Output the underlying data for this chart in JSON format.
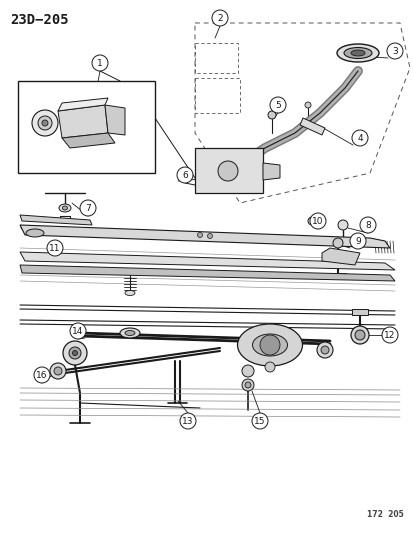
{
  "title": "23D−205",
  "watermark": "172  205",
  "bg_color": "#ffffff",
  "fg_color": "#000000",
  "lc": "#1a1a1a",
  "fig_width": 4.14,
  "fig_height": 5.33,
  "dpi": 100
}
